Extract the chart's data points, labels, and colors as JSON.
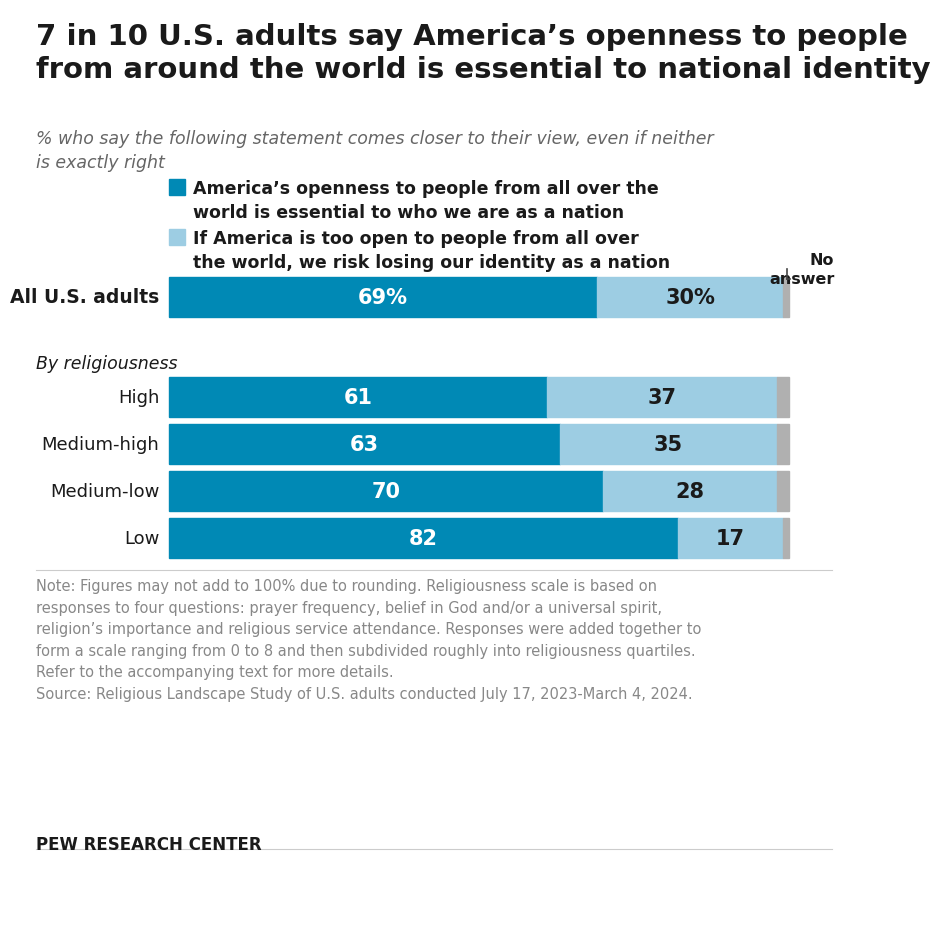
{
  "title": "7 in 10 U.S. adults say America’s openness to people\nfrom around the world is essential to national identity",
  "subtitle": "% who say the following statement comes closer to their view, even if neither\nis exactly right",
  "categories": [
    "All U.S. adults",
    "High",
    "Medium-high",
    "Medium-low",
    "Low"
  ],
  "dark_values": [
    69,
    61,
    63,
    70,
    82
  ],
  "light_values": [
    30,
    37,
    35,
    28,
    17
  ],
  "no_answer": [
    1,
    2,
    2,
    2,
    1
  ],
  "dark_color": "#0089b5",
  "light_color": "#9dcde3",
  "no_answer_color": "#b0b0b0",
  "legend1_label": "America’s openness to people from all over the\nworld is essential to who we are as a nation",
  "legend2_label": "If America is too open to people from all over\nthe world, we risk losing our identity as a nation",
  "by_religiousness_label": "By religiousness",
  "no_answer_label": "No\nanswer",
  "note_text": "Note: Figures may not add to 100% due to rounding. Religiousness scale is based on\nresponses to four questions: prayer frequency, belief in God and/or a universal spirit,\nreligion’s importance and religious service attendance. Responses were added together to\nform a scale ranging from 0 to 8 and then subdivided roughly into religiousness quartiles.\nRefer to the accompanying text for more details.\nSource: Religious Landscape Study of U.S. adults conducted July 17, 2023-March 4, 2024.",
  "source_label": "PEW RESEARCH CENTER",
  "dark_label_color": "#ffffff",
  "light_label_color": "#1a1a1a",
  "background_color": "#ffffff"
}
